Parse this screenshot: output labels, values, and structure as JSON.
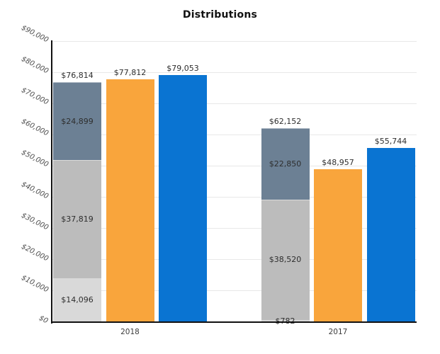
{
  "chart_data": {
    "type": "bar",
    "title": "Distributions",
    "categories": [
      "2018",
      "2017"
    ],
    "ylabel": "",
    "xlabel": "",
    "ylim": [
      0,
      90000
    ],
    "ytick_interval": 10000,
    "grid": "horizontal",
    "legend": "none",
    "yticks": [
      {
        "value": 0,
        "label": "$0"
      },
      {
        "value": 10000,
        "label": "$10,000"
      },
      {
        "value": 20000,
        "label": "$20,000"
      },
      {
        "value": 30000,
        "label": "$30,000"
      },
      {
        "value": 40000,
        "label": "$40,000"
      },
      {
        "value": 50000,
        "label": "$50,000"
      },
      {
        "value": 60000,
        "label": "$60,000"
      },
      {
        "value": 70000,
        "label": "$70,000"
      },
      {
        "value": 80000,
        "label": "$80,000"
      },
      {
        "value": 90000,
        "label": "$90,000"
      }
    ],
    "groups": [
      {
        "category": "2018",
        "stacked_bar": {
          "total_value": 76814,
          "total_label": "$76,814",
          "segments": [
            {
              "name": "bottom",
              "value": 14096,
              "label": "$14,096",
              "color": "#D9D9D9"
            },
            {
              "name": "middle",
              "value": 37819,
              "label": "$37,819",
              "color": "#BCBCBC"
            },
            {
              "name": "top",
              "value": 24899,
              "label": "$24,899",
              "color": "#6C8094"
            }
          ]
        },
        "solid_bars": [
          {
            "name": "orange-bar",
            "value": 77812,
            "label": "$77,812",
            "color": "#F9A53C"
          },
          {
            "name": "blue-bar",
            "value": 79053,
            "label": "$79,053",
            "color": "#0A74D2"
          }
        ]
      },
      {
        "category": "2017",
        "stacked_bar": {
          "total_value": 62152,
          "total_label": "$62,152",
          "segments": [
            {
              "name": "bottom",
              "value": 782,
              "label": "$782",
              "color": "#D9D9D9"
            },
            {
              "name": "middle",
              "value": 38520,
              "label": "$38,520",
              "color": "#BCBCBC"
            },
            {
              "name": "top",
              "value": 22850,
              "label": "$22,850",
              "color": "#6C8094"
            }
          ]
        },
        "solid_bars": [
          {
            "name": "orange-bar",
            "value": 48957,
            "label": "$48,957",
            "color": "#F9A53C"
          },
          {
            "name": "blue-bar",
            "value": 55744,
            "label": "$55,744",
            "color": "#0A74D2"
          }
        ]
      }
    ],
    "colors": {
      "stack_light_gray": "#D9D9D9",
      "stack_medium_gray": "#BCBCBC",
      "stack_slate": "#6C8094",
      "orange": "#F9A53C",
      "blue": "#0A74D2",
      "gridline": "#E8E8E8",
      "axis": "#111111",
      "value_label_text": "#2E2E2E",
      "tick_label_text": "#4D4D4D"
    }
  }
}
